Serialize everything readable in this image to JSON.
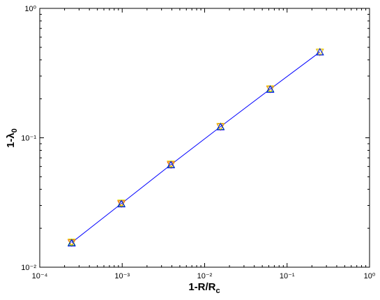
{
  "chart_data": {
    "type": "line",
    "xlabel": {
      "text": "1-R/R",
      "sub": "c"
    },
    "ylabel": {
      "text": "1-λ",
      "sub": "0"
    },
    "x": [
      0.000244,
      0.000977,
      0.0039,
      0.0156,
      0.0625,
      0.25
    ],
    "series": [
      {
        "color": "#0000ff",
        "marker": "none",
        "values": [
          0.0155,
          0.031,
          0.062,
          0.122,
          0.238,
          0.46
        ]
      },
      {
        "color": "#ff0000",
        "marker": "triangle-down",
        "values": [
          0.0155,
          0.031,
          0.062,
          0.122,
          0.238,
          0.46
        ]
      },
      {
        "color": "#00c000",
        "marker": "triangle-up",
        "values": [
          0.0155,
          0.031,
          0.062,
          0.122,
          0.238,
          0.46
        ]
      },
      {
        "color": "#e0e000",
        "marker": "triangle-down",
        "values": [
          0.0157,
          0.0315,
          0.063,
          0.123,
          0.24,
          0.462
        ]
      },
      {
        "color": "#0000ff",
        "marker": "triangle-up",
        "values": [
          0.0153,
          0.0307,
          0.0615,
          0.121,
          0.236,
          0.458
        ]
      }
    ],
    "xscale": "log",
    "yscale": "log",
    "xlim": [
      0.0001,
      1
    ],
    "ylim": [
      0.01,
      1
    ],
    "xticks": [
      {
        "value": 0.0001,
        "label": "10⁻⁴"
      },
      {
        "value": 0.001,
        "label": "10⁻³"
      },
      {
        "value": 0.01,
        "label": "10⁻²"
      },
      {
        "value": 0.1,
        "label": "10⁻¹"
      },
      {
        "value": 1,
        "label": "10⁰"
      }
    ],
    "yticks": [
      {
        "value": 0.01,
        "label": "10⁻²"
      },
      {
        "value": 0.1,
        "label": "10⁻¹"
      },
      {
        "value": 1,
        "label": "10⁰"
      }
    ]
  }
}
